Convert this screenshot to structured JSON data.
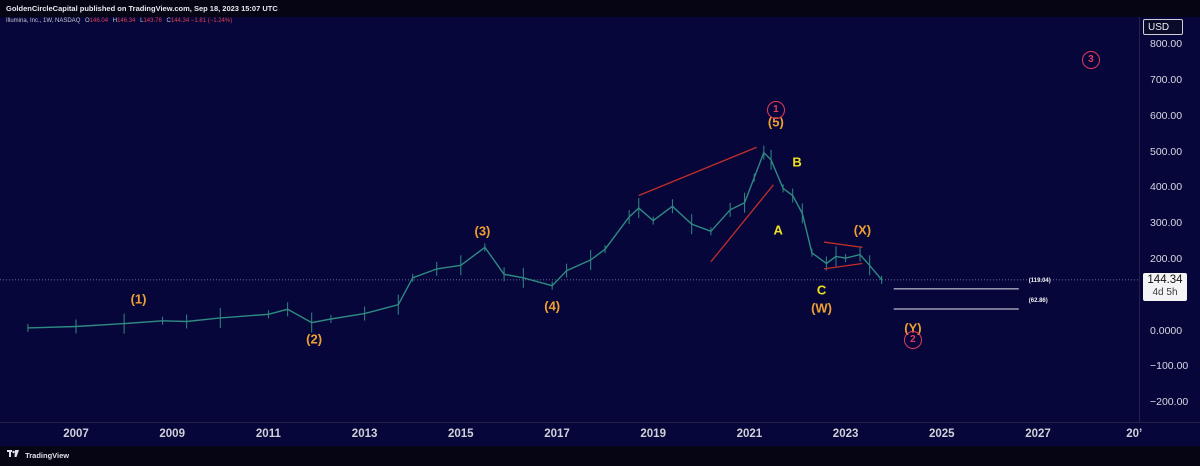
{
  "header": {
    "publisher_line": "GoldenCircleCapital published on TradingView.com, Sep 18, 2023 15:07 UTC"
  },
  "legend": {
    "symbol": "Illumina, Inc., 1W, NASDAQ",
    "open_label": "O",
    "open": "146.04",
    "high_label": "H",
    "high": "146.34",
    "low_label": "L",
    "low": "143.76",
    "close_label": "C",
    "close": "144.34",
    "change": "−1.81 (−1.24%)"
  },
  "price_axis": {
    "currency": "USD",
    "ticks": [
      "800.00",
      "700.00",
      "600.00",
      "500.00",
      "400.00",
      "300.00",
      "200.00",
      "0.0000",
      "−100.00",
      "−200.00"
    ],
    "current_price": "144.34",
    "countdown": "4d 5h"
  },
  "time_axis": {
    "labels": [
      "2007",
      "2009",
      "2011",
      "2013",
      "2015",
      "2017",
      "2019",
      "2021",
      "2023",
      "2025",
      "2027",
      "20’"
    ]
  },
  "footer": {
    "brand": "TradingView"
  },
  "colors": {
    "background": "#06063a",
    "candles": "#2e8a82",
    "wave_orange": "#f0a030",
    "wave_yellow": "#f0e020",
    "circle_red": "#e33c58",
    "trend_red": "#c0302a"
  },
  "annotations": {
    "wave_labels": [
      "(1)",
      "(2)",
      "(3)",
      "(4)",
      "(5)",
      "A",
      "B",
      "C",
      "(W)",
      "(X)",
      "(Y)"
    ],
    "circled": [
      "1",
      "2",
      "3"
    ],
    "levels": [
      "(119.04)",
      "(62.86)"
    ]
  },
  "chart_data": {
    "type": "line",
    "title": "Illumina, Inc., 1W, NASDAQ",
    "xlabel": "",
    "ylabel": "",
    "x_range": [
      2005.8,
      2029.5
    ],
    "ylim": [
      -240,
      870
    ],
    "log_scale": false,
    "grid": false,
    "series": [
      {
        "name": "Price (approx. weekly close)",
        "points": [
          [
            2006.0,
            10
          ],
          [
            2007.0,
            14
          ],
          [
            2008.0,
            22
          ],
          [
            2008.8,
            30
          ],
          [
            2009.3,
            28
          ],
          [
            2010.0,
            38
          ],
          [
            2011.0,
            48
          ],
          [
            2011.4,
            62
          ],
          [
            2011.9,
            25
          ],
          [
            2012.3,
            35
          ],
          [
            2013.0,
            50
          ],
          [
            2013.7,
            75
          ],
          [
            2014.0,
            150
          ],
          [
            2014.5,
            175
          ],
          [
            2015.0,
            185
          ],
          [
            2015.5,
            235
          ],
          [
            2015.9,
            160
          ],
          [
            2016.3,
            150
          ],
          [
            2016.9,
            128
          ],
          [
            2017.2,
            170
          ],
          [
            2017.7,
            200
          ],
          [
            2018.0,
            230
          ],
          [
            2018.5,
            320
          ],
          [
            2018.7,
            345
          ],
          [
            2019.0,
            310
          ],
          [
            2019.4,
            350
          ],
          [
            2019.8,
            300
          ],
          [
            2020.2,
            280
          ],
          [
            2020.6,
            340
          ],
          [
            2020.9,
            360
          ],
          [
            2021.1,
            430
          ],
          [
            2021.3,
            500
          ],
          [
            2021.45,
            480
          ],
          [
            2021.7,
            400
          ],
          [
            2021.9,
            380
          ],
          [
            2022.1,
            330
          ],
          [
            2022.3,
            220
          ],
          [
            2022.6,
            190
          ],
          [
            2022.8,
            210
          ],
          [
            2023.0,
            205
          ],
          [
            2023.3,
            215
          ],
          [
            2023.5,
            185
          ],
          [
            2023.75,
            144.34
          ]
        ]
      }
    ],
    "wave_labels": [
      {
        "text": "(1)",
        "x": 2008.3,
        "y": 90
      },
      {
        "text": "(2)",
        "x": 2011.95,
        "y": -20
      },
      {
        "text": "(3)",
        "x": 2015.45,
        "y": 280
      },
      {
        "text": "(4)",
        "x": 2016.9,
        "y": 72
      },
      {
        "text": "(5)",
        "x": 2021.55,
        "y": 585
      },
      {
        "text": "A",
        "x": 2021.6,
        "y": 285
      },
      {
        "text": "B",
        "x": 2021.99,
        "y": 475
      },
      {
        "text": "C",
        "x": 2022.5,
        "y": 115
      },
      {
        "text": "(W)",
        "x": 2022.5,
        "y": 65
      },
      {
        "text": "(X)",
        "x": 2023.35,
        "y": 285
      },
      {
        "text": "(Y)",
        "x": 2024.4,
        "y": 10
      },
      {
        "text": "1",
        "x": 2021.55,
        "y": 620
      },
      {
        "text": "2",
        "x": 2024.4,
        "y": -25
      },
      {
        "text": "3",
        "x": 2028.1,
        "y": 760
      }
    ],
    "trendlines": [
      {
        "x1": 2018.7,
        "y1": 380,
        "x2": 2021.15,
        "y2": 515
      },
      {
        "x1": 2020.2,
        "y1": 195,
        "x2": 2021.5,
        "y2": 410
      },
      {
        "x1": 2022.55,
        "y1": 250,
        "x2": 2023.35,
        "y2": 235
      },
      {
        "x1": 2022.55,
        "y1": 175,
        "x2": 2023.35,
        "y2": 190
      }
    ],
    "levels": [
      {
        "label": "(119.04)",
        "y": 119.04,
        "x_start": 2024.0,
        "x_end": 2026.6
      },
      {
        "label": "(62.86)",
        "y": 62.86,
        "x_start": 2024.0,
        "x_end": 2026.6
      }
    ],
    "current_price_line": 144.34
  }
}
